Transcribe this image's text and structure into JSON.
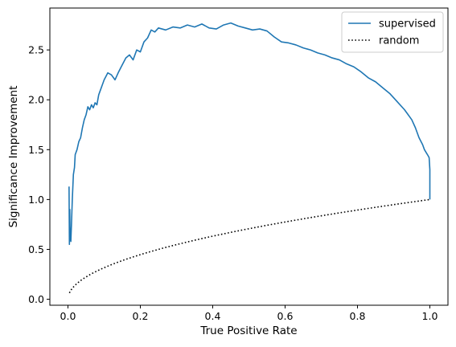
{
  "chart_data": {
    "type": "line",
    "xlabel": "True Positive Rate",
    "ylabel": "Significance Improvement",
    "xlim": [
      -0.05,
      1.05
    ],
    "ylim": [
      -0.06,
      2.92
    ],
    "x_ticks": [
      0.0,
      0.2,
      0.4,
      0.6,
      0.8,
      1.0
    ],
    "x_tick_labels": [
      "0.0",
      "0.2",
      "0.4",
      "0.6",
      "0.8",
      "1.0"
    ],
    "y_ticks": [
      0.0,
      0.5,
      1.0,
      1.5,
      2.0,
      2.5
    ],
    "y_tick_labels": [
      "0.0",
      "0.5",
      "1.0",
      "1.5",
      "2.0",
      "2.5"
    ],
    "grid": false,
    "legend_position": "top-right",
    "series": [
      {
        "name": "supervised",
        "color": "#1f77b4",
        "style": "solid",
        "x": [
          0.003,
          0.004,
          0.005,
          0.006,
          0.008,
          0.01,
          0.012,
          0.015,
          0.018,
          0.02,
          0.025,
          0.03,
          0.035,
          0.04,
          0.045,
          0.05,
          0.055,
          0.06,
          0.065,
          0.07,
          0.075,
          0.08,
          0.085,
          0.09,
          0.1,
          0.11,
          0.12,
          0.13,
          0.14,
          0.15,
          0.16,
          0.17,
          0.18,
          0.19,
          0.2,
          0.21,
          0.22,
          0.23,
          0.24,
          0.25,
          0.27,
          0.29,
          0.31,
          0.33,
          0.35,
          0.37,
          0.39,
          0.41,
          0.43,
          0.45,
          0.47,
          0.49,
          0.51,
          0.53,
          0.55,
          0.57,
          0.59,
          0.61,
          0.63,
          0.65,
          0.67,
          0.69,
          0.71,
          0.73,
          0.75,
          0.77,
          0.79,
          0.81,
          0.83,
          0.85,
          0.87,
          0.89,
          0.91,
          0.93,
          0.95,
          0.96,
          0.97,
          0.98,
          0.985,
          0.99,
          0.995,
          0.998,
          1.0,
          1.0
        ],
        "y": [
          1.13,
          0.55,
          0.9,
          0.62,
          0.58,
          0.78,
          1.0,
          1.25,
          1.32,
          1.45,
          1.5,
          1.58,
          1.62,
          1.72,
          1.8,
          1.85,
          1.93,
          1.9,
          1.95,
          1.92,
          1.97,
          1.95,
          2.05,
          2.1,
          2.2,
          2.27,
          2.25,
          2.2,
          2.28,
          2.35,
          2.42,
          2.45,
          2.4,
          2.5,
          2.48,
          2.58,
          2.62,
          2.7,
          2.68,
          2.72,
          2.7,
          2.73,
          2.72,
          2.75,
          2.73,
          2.76,
          2.72,
          2.71,
          2.75,
          2.77,
          2.74,
          2.72,
          2.7,
          2.71,
          2.69,
          2.63,
          2.58,
          2.57,
          2.55,
          2.52,
          2.5,
          2.47,
          2.45,
          2.42,
          2.4,
          2.36,
          2.33,
          2.28,
          2.22,
          2.18,
          2.12,
          2.06,
          1.98,
          1.9,
          1.8,
          1.72,
          1.62,
          1.55,
          1.5,
          1.47,
          1.44,
          1.42,
          1.3,
          1.0
        ]
      },
      {
        "name": "random",
        "color": "#000000",
        "style": "dotted",
        "function": "sqrt",
        "x_start": 0.004,
        "x_end": 1.0
      }
    ]
  }
}
